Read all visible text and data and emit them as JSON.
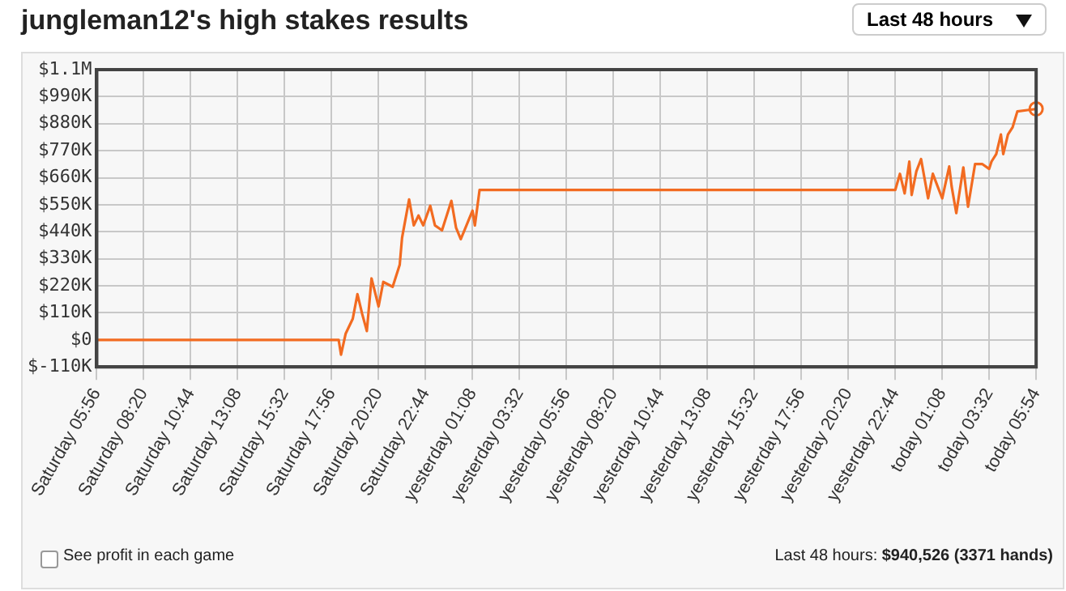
{
  "chart_data": {
    "type": "line",
    "title": "jungleman12's high stakes results",
    "annotations": [
      "Last 48 hours",
      "See profit in each game",
      "Last 48 hours:",
      "$940,526 (3371 hands)"
    ],
    "categories": [
      "Saturday 05:56",
      null,
      null,
      null,
      null,
      null,
      null,
      null,
      null,
      null,
      null,
      null,
      null,
      null,
      null,
      null,
      null,
      null,
      null,
      null,
      "Saturday 08:20",
      null,
      null,
      null,
      null,
      null,
      null,
      null,
      null,
      null,
      null,
      null,
      null,
      null,
      null,
      null,
      null,
      null,
      null,
      null,
      "Saturday 10:44",
      null,
      null,
      null,
      null,
      null,
      null,
      null,
      null,
      null,
      null,
      null,
      null,
      null,
      null,
      null,
      null,
      null,
      null,
      null,
      "Saturday 13:08",
      null,
      null,
      null,
      null,
      null,
      null,
      null,
      null,
      null,
      null,
      null,
      null,
      null,
      null,
      null,
      null,
      null,
      null,
      null,
      "Saturday 15:32",
      null,
      null,
      null,
      null,
      null,
      null,
      null,
      null,
      null,
      null,
      null,
      null,
      null,
      null,
      null,
      null,
      null,
      null,
      null,
      "Saturday 17:56",
      null,
      null,
      null,
      null,
      null,
      null,
      null,
      null,
      null,
      null,
      null,
      null,
      null,
      null,
      null,
      null,
      null,
      null,
      null,
      "Saturday 20:20",
      null,
      null,
      null,
      null,
      null,
      null,
      null,
      null,
      null,
      null,
      null,
      null,
      null,
      null,
      null,
      null,
      null,
      null,
      null,
      "Saturday 22:44",
      null,
      null,
      null,
      null,
      null,
      null,
      null,
      null,
      null,
      null,
      null,
      null,
      null,
      null,
      null,
      null,
      null,
      null,
      null,
      "yesterday 01:08",
      null,
      null,
      null,
      null,
      null,
      null,
      null,
      null,
      null,
      null,
      null,
      null,
      null,
      null,
      null,
      null,
      null,
      null,
      null,
      "yesterday 03:32",
      null,
      null,
      null,
      null,
      null,
      null,
      null,
      null,
      null,
      null,
      null,
      null,
      null,
      null,
      null,
      null,
      null,
      null,
      null,
      "yesterday 05:56",
      null,
      null,
      null,
      null,
      null,
      null,
      null,
      null,
      null,
      null,
      null,
      null,
      null,
      null,
      null,
      null,
      null,
      null,
      null,
      "yesterday 08:20",
      null,
      null,
      null,
      null,
      null,
      null,
      null,
      null,
      null,
      null,
      null,
      null,
      null,
      null,
      null,
      null,
      null,
      null,
      null,
      "yesterday 10:44",
      null,
      null,
      null,
      null,
      null,
      null,
      null,
      null,
      null,
      null,
      null,
      null,
      null,
      null,
      null,
      null,
      null,
      null,
      null,
      "yesterday 13:08",
      null,
      null,
      null,
      null,
      null,
      null,
      null,
      null,
      null,
      null,
      null,
      null,
      null,
      null,
      null,
      null,
      null,
      null,
      null,
      "yesterday 15:32",
      null,
      null,
      null,
      null,
      null,
      null,
      null,
      null,
      null,
      null,
      null,
      null,
      null,
      null,
      null,
      null,
      null,
      null,
      null,
      "yesterday 17:56",
      null,
      null,
      null,
      null,
      null,
      null,
      null,
      null,
      null,
      null,
      null,
      null,
      null,
      null,
      null,
      null,
      null,
      null,
      null,
      "yesterday 20:20",
      null,
      null,
      null,
      null,
      null,
      null,
      null,
      null,
      null,
      null,
      null,
      null,
      null,
      null,
      null,
      null,
      null,
      null,
      null,
      "yesterday 22:44",
      null,
      null,
      null,
      null,
      null,
      null,
      null,
      null,
      null,
      null,
      null,
      null,
      null,
      null,
      null,
      null,
      null,
      null,
      null,
      "today 01:08",
      null,
      null,
      null,
      null,
      null,
      null,
      null,
      null,
      null,
      null,
      null,
      null,
      null,
      null,
      null,
      null,
      null,
      null,
      null,
      "today 03:32",
      null,
      null,
      null,
      null,
      null,
      null,
      null,
      null,
      null,
      null,
      null,
      null,
      null,
      null,
      null,
      null,
      null,
      null,
      null,
      "today 05:54"
    ],
    "ylim": [
      -110000,
      1100000
    ],
    "yticks": [
      {
        "value": -110000,
        "label": "$-110K"
      },
      {
        "value": 0,
        "label": "$0"
      },
      {
        "value": 110000,
        "label": "$110K"
      },
      {
        "value": 220000,
        "label": "$220K"
      },
      {
        "value": 330000,
        "label": "$330K"
      },
      {
        "value": 440000,
        "label": "$440K"
      },
      {
        "value": 550000,
        "label": "$550K"
      },
      {
        "value": 660000,
        "label": "$660K"
      },
      {
        "value": 770000,
        "label": "$770K"
      },
      {
        "value": 880000,
        "label": "$880K"
      },
      {
        "value": 990000,
        "label": "$990K"
      },
      {
        "value": 1100000,
        "label": "$1.1M"
      }
    ],
    "grid": true,
    "legend": false,
    "marker": "none",
    "line_style": "solid",
    "series": [
      {
        "color": "#f26b21",
        "values": [
          0,
          0,
          0,
          0,
          0,
          0,
          0,
          0,
          0,
          0,
          0,
          0,
          0,
          0,
          0,
          0,
          0,
          0,
          0,
          0,
          0,
          0,
          0,
          0,
          0,
          0,
          0,
          0,
          0,
          0,
          0,
          0,
          0,
          0,
          0,
          0,
          0,
          0,
          0,
          0,
          0,
          0,
          0,
          0,
          0,
          0,
          0,
          0,
          0,
          0,
          0,
          0,
          0,
          0,
          0,
          0,
          0,
          0,
          0,
          0,
          0,
          0,
          0,
          0,
          0,
          0,
          0,
          0,
          0,
          0,
          0,
          0,
          0,
          0,
          0,
          0,
          0,
          0,
          0,
          0,
          0,
          0,
          0,
          0,
          0,
          0,
          0,
          0,
          0,
          0,
          0,
          0,
          0,
          0,
          0,
          0,
          0,
          0,
          0,
          0,
          0,
          0,
          0,
          0,
          -60000,
          null,
          26000,
          null,
          null,
          86000,
          null,
          186000,
          null,
          106000,
          null,
          36000,
          null,
          250000,
          null,
          null,
          136000,
          null,
          236000,
          null,
          226000,
          null,
          216000,
          null,
          null,
          306000,
          416000,
          null,
          null,
          572000,
          null,
          466000,
          null,
          506000,
          null,
          466000,
          null,
          null,
          546000,
          null,
          466000,
          null,
          null,
          446000,
          null,
          null,
          null,
          566000,
          null,
          456000,
          null,
          410000,
          null,
          456000,
          null,
          null,
          526000,
          466000,
          null,
          610000,
          610000,
          610000,
          610000,
          610000,
          610000,
          610000,
          610000,
          610000,
          610000,
          610000,
          610000,
          610000,
          610000,
          610000,
          610000,
          610000,
          610000,
          610000,
          610000,
          610000,
          610000,
          610000,
          610000,
          610000,
          610000,
          610000,
          610000,
          610000,
          610000,
          610000,
          610000,
          610000,
          610000,
          610000,
          610000,
          610000,
          610000,
          610000,
          610000,
          610000,
          610000,
          610000,
          610000,
          610000,
          610000,
          610000,
          610000,
          610000,
          610000,
          610000,
          610000,
          610000,
          610000,
          610000,
          610000,
          610000,
          610000,
          610000,
          610000,
          610000,
          610000,
          610000,
          610000,
          610000,
          610000,
          610000,
          610000,
          610000,
          610000,
          610000,
          610000,
          610000,
          610000,
          610000,
          610000,
          610000,
          610000,
          610000,
          610000,
          610000,
          610000,
          610000,
          610000,
          610000,
          610000,
          610000,
          610000,
          610000,
          610000,
          610000,
          610000,
          610000,
          610000,
          610000,
          610000,
          610000,
          610000,
          610000,
          610000,
          610000,
          610000,
          610000,
          610000,
          610000,
          610000,
          610000,
          610000,
          610000,
          610000,
          610000,
          610000,
          610000,
          610000,
          610000,
          610000,
          610000,
          610000,
          610000,
          610000,
          610000,
          610000,
          610000,
          610000,
          610000,
          610000,
          610000,
          610000,
          610000,
          610000,
          610000,
          610000,
          610000,
          610000,
          610000,
          610000,
          610000,
          610000,
          610000,
          610000,
          610000,
          610000,
          610000,
          610000,
          610000,
          610000,
          610000,
          610000,
          610000,
          610000,
          610000,
          610000,
          610000,
          610000,
          610000,
          610000,
          610000,
          610000,
          610000,
          610000,
          610000,
          610000,
          610000,
          610000,
          610000,
          610000,
          610000,
          610000,
          610000,
          610000,
          610000,
          610000,
          610000,
          610000,
          610000,
          610000,
          610000,
          610000,
          null,
          676000,
          null,
          596000,
          null,
          726000,
          590000,
          null,
          686000,
          null,
          736000,
          null,
          null,
          576000,
          null,
          676000,
          null,
          626000,
          null,
          576000,
          null,
          null,
          706000,
          626000,
          null,
          516000,
          null,
          null,
          702000,
          null,
          542000,
          null,
          null,
          716000,
          null,
          null,
          716000,
          null,
          null,
          696000,
          726000,
          null,
          756000,
          null,
          836000,
          756000,
          null,
          836000,
          null,
          866000,
          null,
          930000,
          null,
          null,
          null,
          null,
          null,
          null,
          null,
          940000
        ]
      },
      {
        "type": "scatter",
        "color": "#f26b21",
        "marker": "circle",
        "x": [
          "today 05:54"
        ],
        "values": [
          940000
        ]
      }
    ]
  }
}
